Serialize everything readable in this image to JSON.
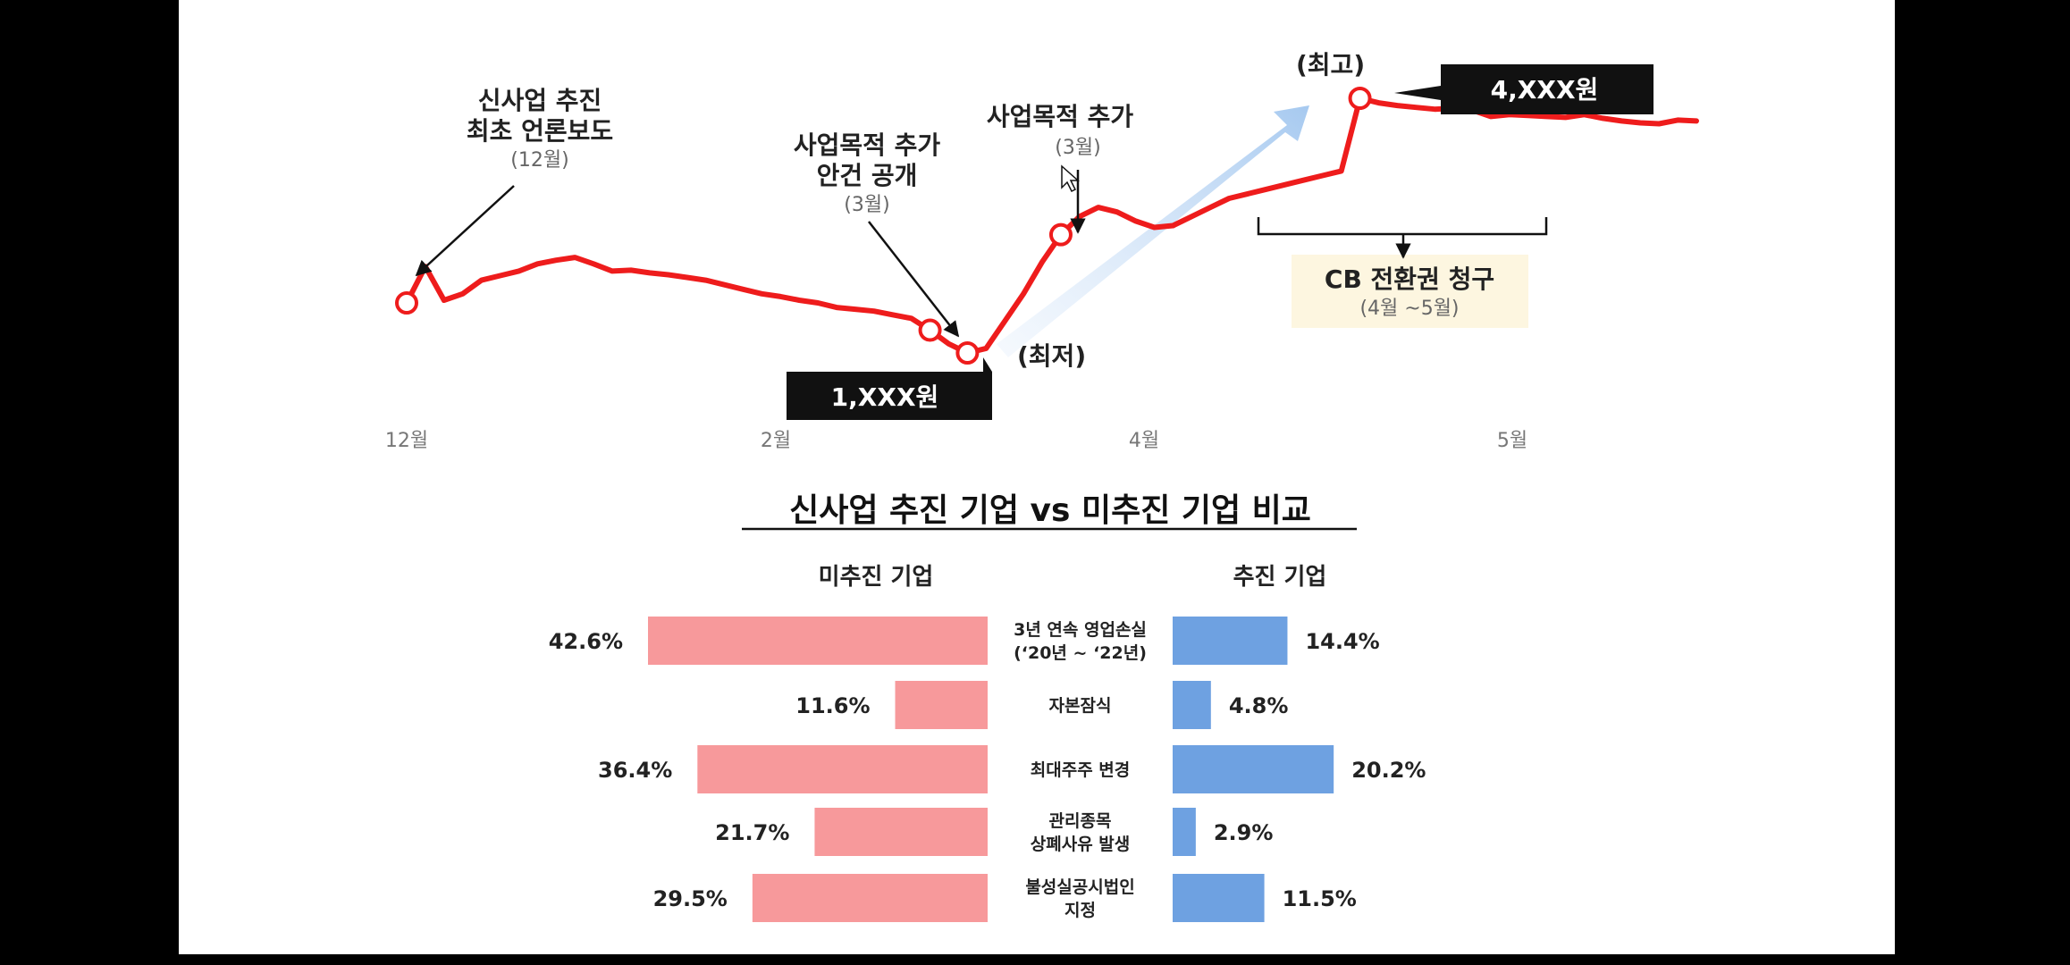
{
  "chart_data": [
    {
      "type": "line",
      "x_ticks": [
        "12월",
        "2월",
        "4월",
        "5월"
      ],
      "series": [
        {
          "x": [
            0,
            1,
            2,
            3,
            4,
            5,
            6,
            7,
            8,
            9,
            10,
            11,
            12,
            13,
            14,
            15,
            16,
            17,
            18,
            19,
            20,
            21,
            22,
            23,
            24,
            25,
            26,
            27,
            28,
            29,
            30,
            31,
            32,
            33,
            34,
            35,
            36,
            37,
            38,
            39,
            40,
            41,
            42,
            43,
            44,
            45,
            46,
            47,
            48,
            49,
            50,
            51,
            52,
            53,
            54,
            55,
            56,
            57,
            58,
            59,
            60,
            61,
            62,
            63,
            64,
            65,
            66,
            67,
            68,
            69
          ],
          "y": [
            1950,
            2350,
            1980,
            2050,
            2200,
            2250,
            2300,
            2380,
            2420,
            2450,
            2380,
            2300,
            2310,
            2280,
            2260,
            2230,
            2200,
            2150,
            2100,
            2050,
            2020,
            1980,
            1950,
            1900,
            1880,
            1860,
            1820,
            1780,
            1650,
            1500,
            1400,
            1450,
            1750,
            2050,
            2400,
            2700,
            2900,
            3000,
            2950,
            2850,
            2780,
            2800,
            2900,
            3000,
            3100,
            3150,
            3200,
            3250,
            3300,
            3350,
            3400,
            4200,
            4150,
            4120,
            4100,
            4080,
            4090,
            4070,
            4000,
            4020,
            4010,
            4000,
            3990,
            4020,
            3980,
            3950,
            3930,
            3920,
            3960,
            3950
          ]
        }
      ],
      "annotations": [
        {
          "title": [
            "신사업 추진",
            "최초 언론보도"
          ],
          "sub": "(12월)"
        },
        {
          "title": [
            "사업목적 추가",
            "안건 공개"
          ],
          "sub": "(3월)"
        },
        {
          "title": [
            "사업목적 추가"
          ],
          "sub": "(3월)"
        },
        {
          "title": [
            "CB 전환권 청구"
          ],
          "sub": "(4월 ~5월)"
        }
      ],
      "low_label": "(최저)",
      "low_price": "1,XXX원",
      "high_label": "(최고)",
      "high_price": "4,XXX원"
    },
    {
      "type": "bar",
      "title": "신사업 추진 기업 vs 미추진 기업 비교",
      "categories": [
        [
          "3년 연속 영업손실",
          "(‘20년 ~ ‘22년)"
        ],
        [
          "자본잠식"
        ],
        [
          "최대주주 변경"
        ],
        [
          "관리종목",
          "상폐사유 발생"
        ],
        [
          "불성실공시법인",
          "지정"
        ]
      ],
      "series": [
        {
          "name": "미추진 기업",
          "values": [
            42.6,
            11.6,
            36.4,
            21.7,
            29.5
          ],
          "labels": [
            "42.6%",
            "11.6%",
            "36.4%",
            "21.7%",
            "29.5%"
          ],
          "color": "#f7999b"
        },
        {
          "name": "추진 기업",
          "values": [
            14.4,
            4.8,
            20.2,
            2.9,
            11.5
          ],
          "labels": [
            "14.4%",
            "4.8%",
            "20.2%",
            "2.9%",
            "11.5%"
          ],
          "color": "#6ea1e1"
        }
      ]
    }
  ]
}
